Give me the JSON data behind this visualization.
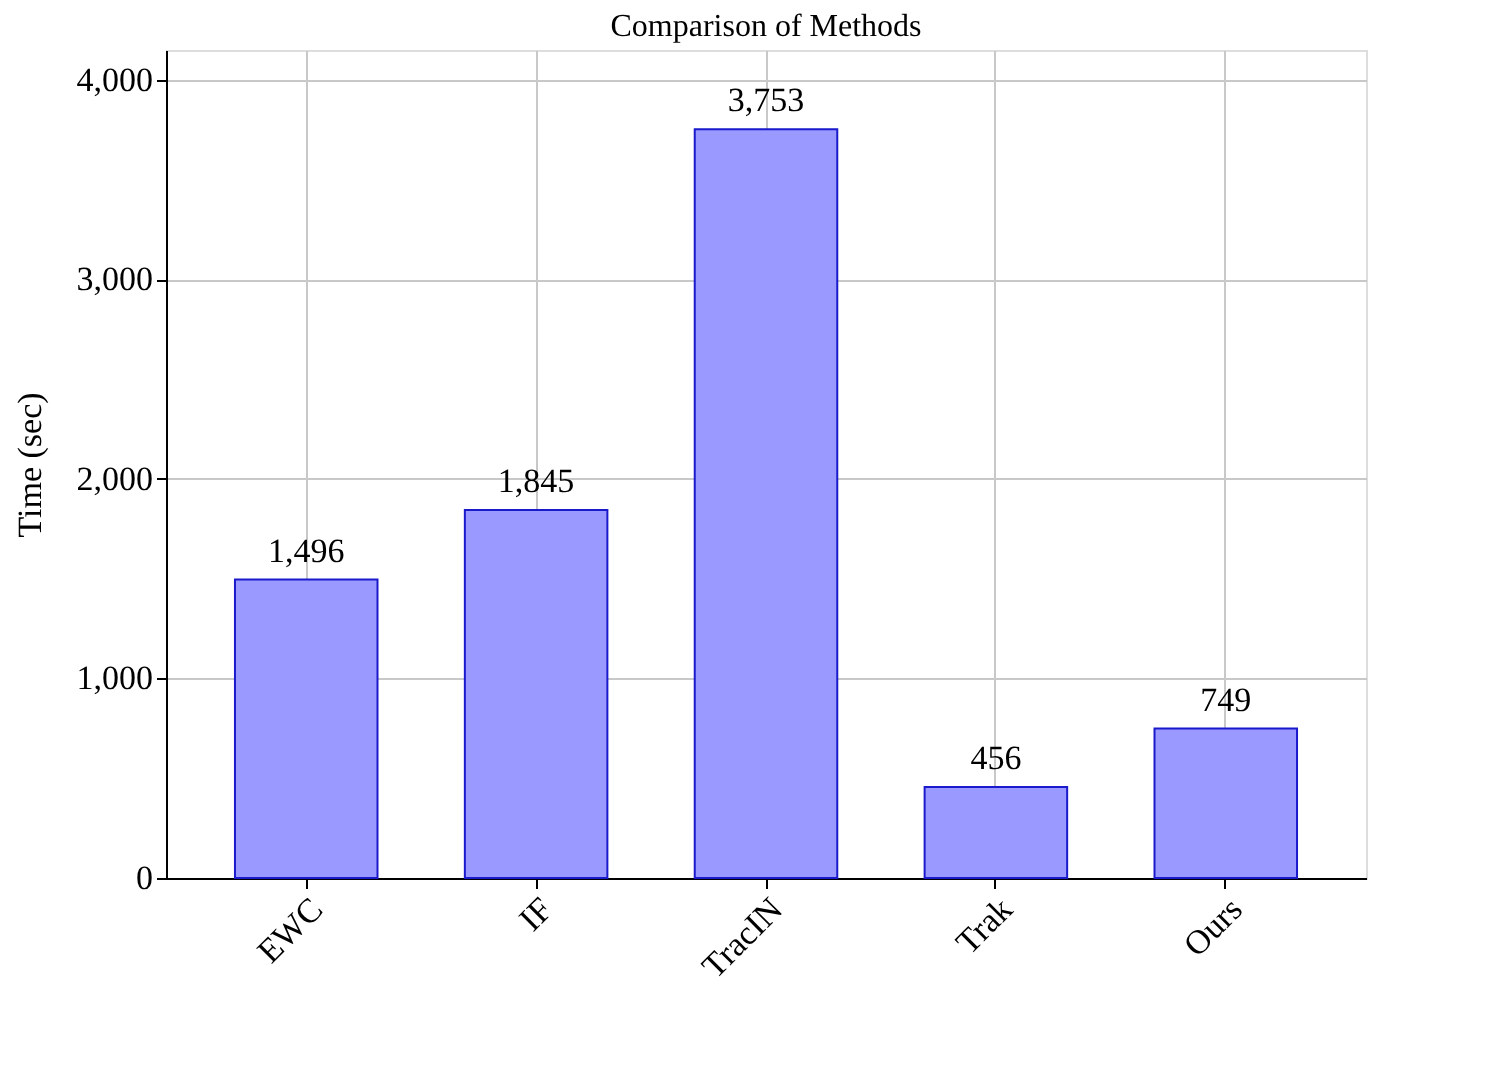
{
  "chart_data": {
    "type": "bar",
    "title": "Comparison of Methods",
    "ylabel": "Time (sec)",
    "categories": [
      "EWC",
      "IF",
      "TracIN",
      "Trak",
      "Ours"
    ],
    "values": [
      1496,
      1845,
      3753,
      456,
      749
    ],
    "color": "#9999ff",
    "ylim": [
      0,
      4150
    ],
    "yticks": [
      {
        "value": 0,
        "label": "0"
      },
      {
        "value": 1000,
        "label": "1,000"
      },
      {
        "value": 2000,
        "label": "2,000"
      },
      {
        "value": 3000,
        "label": "3,000"
      },
      {
        "value": 4000,
        "label": "4,000"
      }
    ],
    "grid": true,
    "value_labels": [
      "1,496",
      "1,845",
      "3,753",
      "456",
      "749"
    ]
  }
}
